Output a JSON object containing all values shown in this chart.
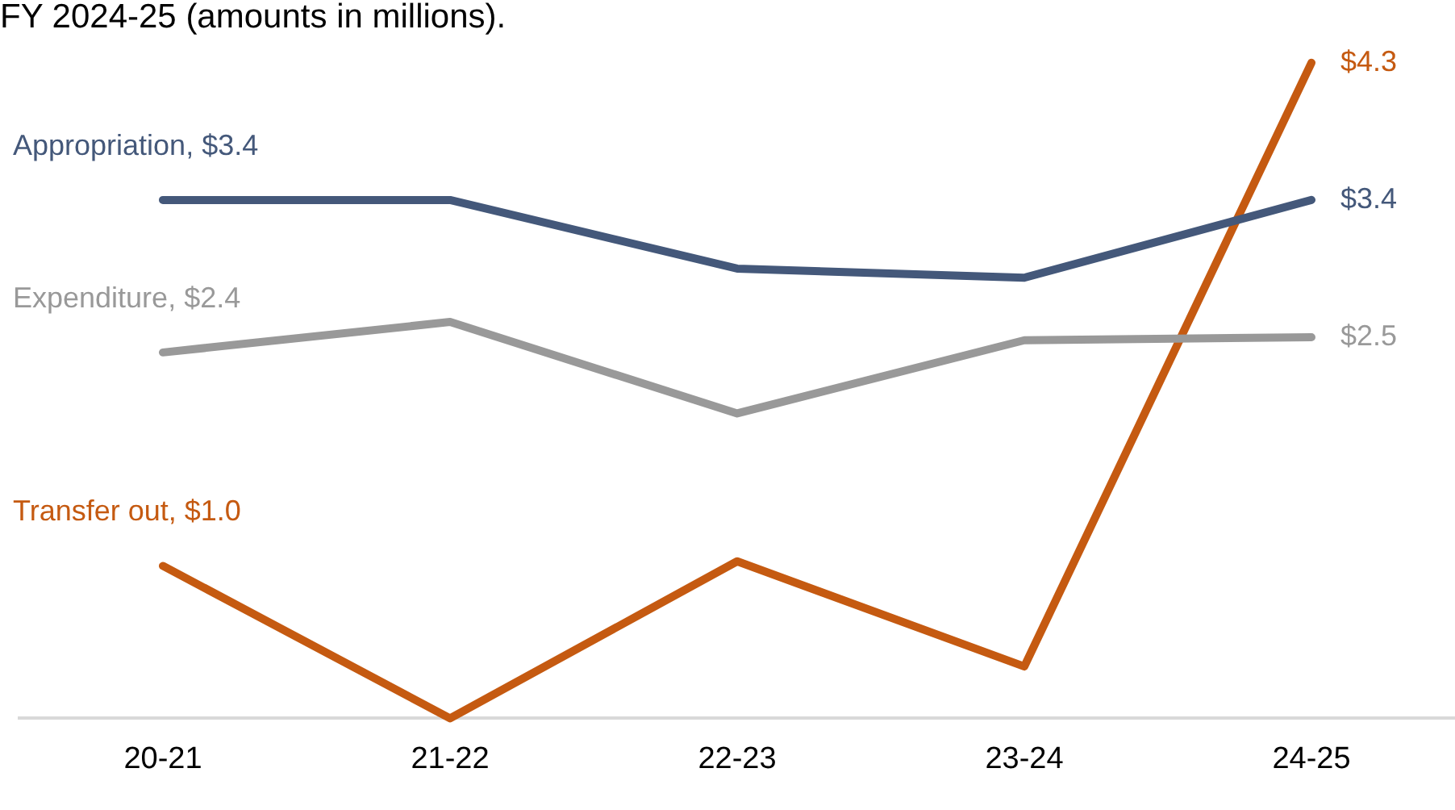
{
  "chart_data": {
    "type": "line",
    "title": "FY 2024-25 (amounts in millions).",
    "categories": [
      "20-21",
      "21-22",
      "22-23",
      "23-24",
      "24-25"
    ],
    "series": [
      {
        "color": "#44587a",
        "values": [
          3.4,
          3.4,
          2.95,
          2.89,
          3.4
        ],
        "value_labels": [
          "Appropriation, $3.4",
          null,
          null,
          null,
          "$3.4"
        ]
      },
      {
        "color": "#999999",
        "values": [
          2.4,
          2.6,
          2.0,
          2.48,
          2.5
        ],
        "value_labels": [
          "Expenditure, $2.4",
          null,
          null,
          null,
          "$2.5"
        ]
      },
      {
        "color": "#c55a11",
        "values": [
          1.0,
          0.0,
          1.03,
          0.34,
          4.3
        ],
        "value_labels": [
          "Transfer out, $1.0",
          null,
          null,
          null,
          "$4.3"
        ]
      }
    ],
    "grid": false,
    "legend": false,
    "marker": "none",
    "line_style": "solid"
  }
}
